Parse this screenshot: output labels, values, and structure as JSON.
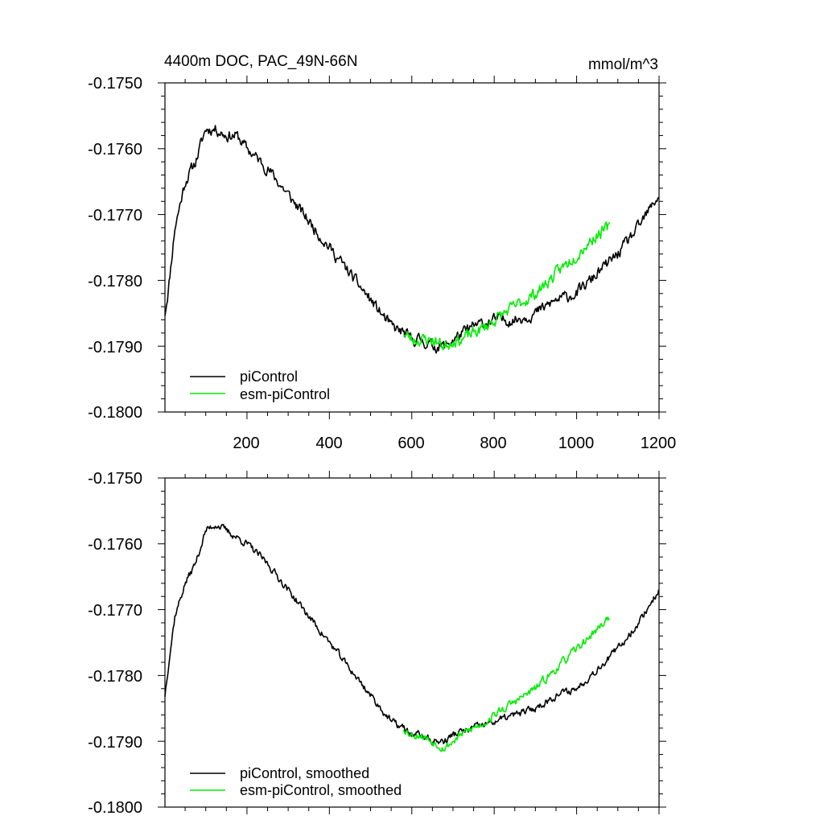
{
  "chart_data": [
    {
      "type": "line",
      "title": "4400m DOC, PAC_49N-66N",
      "units": "mmol/m^3",
      "xlim": [
        1,
        1200
      ],
      "ylim": [
        -0.18,
        -0.175
      ],
      "x_tick_values": [
        200,
        400,
        600,
        800,
        1000,
        1200
      ],
      "x_tick_labels": [
        "200",
        "400",
        "600",
        "800",
        "1000",
        "1200"
      ],
      "y_tick_values": [
        -0.175,
        -0.176,
        -0.177,
        -0.178,
        -0.179,
        -0.18
      ],
      "y_tick_labels": [
        "-0.1750",
        "-0.1760",
        "-0.1770",
        "-0.1780",
        "-0.1790",
        "-0.1800"
      ],
      "legend_position": "bottom-left",
      "series": [
        {
          "name": "piControl",
          "color": "#000000",
          "noise": 0.00011,
          "seed": 11,
          "x": [
            1,
            10,
            25,
            50,
            75,
            100,
            125,
            150,
            175,
            200,
            250,
            300,
            350,
            400,
            450,
            500,
            550,
            580,
            600,
            620,
            650,
            680,
            700,
            750,
            800,
            850,
            900,
            950,
            1000,
            1050,
            1100,
            1150,
            1200
          ],
          "values": [
            -0.1785,
            -0.1781,
            -0.1772,
            -0.1765,
            -0.1762,
            -0.1757,
            -0.1757,
            -0.1758,
            -0.1758,
            -0.176,
            -0.1763,
            -0.1767,
            -0.1771,
            -0.1775,
            -0.1779,
            -0.1783,
            -0.1787,
            -0.1788,
            -0.1789,
            -0.1789,
            -0.179,
            -0.179,
            -0.1789,
            -0.1787,
            -0.1786,
            -0.1786,
            -0.1785,
            -0.1783,
            -0.1782,
            -0.1779,
            -0.1776,
            -0.1772,
            -0.1767
          ]
        },
        {
          "name": "esm-piControl",
          "color": "#00ee00",
          "noise": 0.00012,
          "seed": 23,
          "x": [
            580,
            600,
            620,
            650,
            680,
            700,
            720,
            750,
            780,
            800,
            850,
            900,
            950,
            1000,
            1050,
            1080
          ],
          "values": [
            -0.1788,
            -0.1789,
            -0.1789,
            -0.1789,
            -0.179,
            -0.1789,
            -0.1789,
            -0.1788,
            -0.1787,
            -0.1786,
            -0.1784,
            -0.1782,
            -0.1779,
            -0.1776,
            -0.1773,
            -0.1772
          ]
        }
      ]
    },
    {
      "type": "line",
      "title": "",
      "units": "",
      "xlim": [
        1,
        1200
      ],
      "ylim": [
        -0.18,
        -0.175
      ],
      "x_tick_values": [
        200,
        400,
        600,
        800,
        1000,
        1200
      ],
      "x_tick_labels": [],
      "y_tick_values": [
        -0.175,
        -0.176,
        -0.177,
        -0.178,
        -0.179,
        -0.18
      ],
      "y_tick_labels": [
        "-0.1750",
        "-0.1760",
        "-0.1770",
        "-0.1780",
        "-0.1790",
        "-0.1800"
      ],
      "legend_position": "bottom-left",
      "series": [
        {
          "name": "piControl, smoothed",
          "color": "#000000",
          "noise": 7e-05,
          "seed": 37,
          "x": [
            1,
            10,
            25,
            50,
            75,
            100,
            125,
            150,
            175,
            200,
            250,
            300,
            350,
            400,
            450,
            500,
            550,
            580,
            600,
            620,
            650,
            680,
            700,
            750,
            800,
            850,
            900,
            950,
            1000,
            1050,
            1100,
            1150,
            1200
          ],
          "values": [
            -0.1783,
            -0.1778,
            -0.1771,
            -0.1766,
            -0.1763,
            -0.1758,
            -0.1757,
            -0.1758,
            -0.1759,
            -0.176,
            -0.1763,
            -0.1767,
            -0.1771,
            -0.1775,
            -0.1779,
            -0.1783,
            -0.1787,
            -0.1788,
            -0.1789,
            -0.1789,
            -0.179,
            -0.179,
            -0.1789,
            -0.1788,
            -0.1787,
            -0.1786,
            -0.1785,
            -0.1783,
            -0.1782,
            -0.1779,
            -0.1776,
            -0.1772,
            -0.1767
          ]
        },
        {
          "name": "esm-piControl, smoothed",
          "color": "#00ee00",
          "noise": 8e-05,
          "seed": 53,
          "x": [
            580,
            600,
            620,
            650,
            680,
            700,
            720,
            750,
            780,
            800,
            850,
            900,
            950,
            1000,
            1050,
            1080
          ],
          "values": [
            -0.1788,
            -0.1789,
            -0.1789,
            -0.179,
            -0.1791,
            -0.179,
            -0.1789,
            -0.1788,
            -0.1787,
            -0.1786,
            -0.1784,
            -0.1782,
            -0.1779,
            -0.1776,
            -0.1773,
            -0.1771
          ]
        }
      ]
    }
  ]
}
